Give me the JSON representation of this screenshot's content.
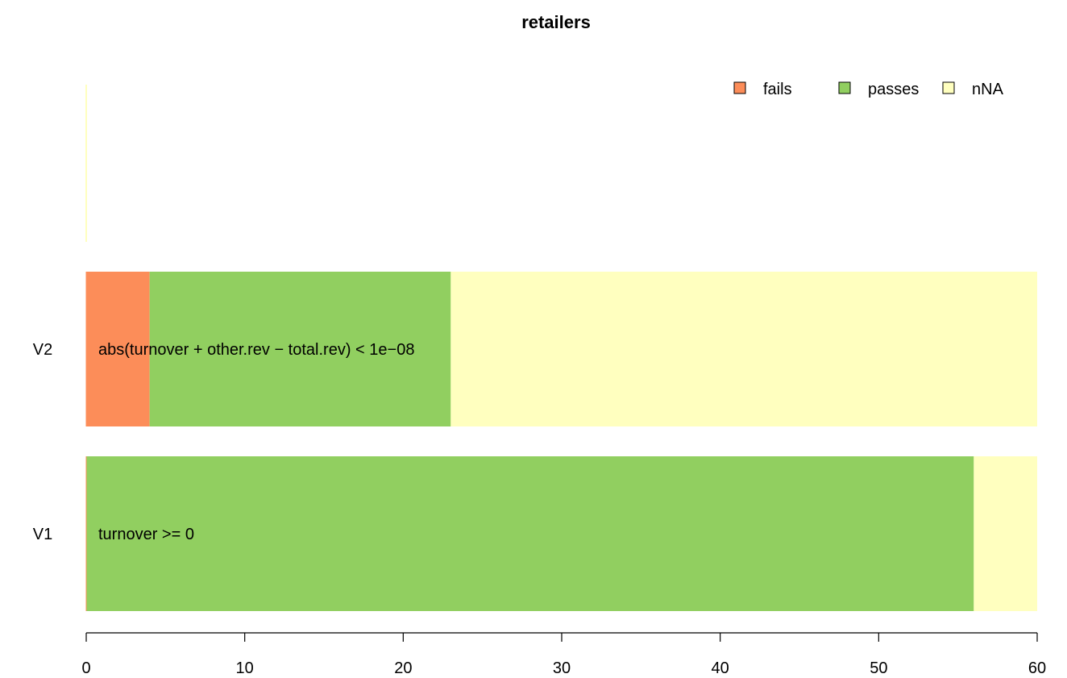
{
  "chart_data": {
    "type": "bar",
    "orientation": "horizontal",
    "stacked": true,
    "title": "retailers",
    "xlim": [
      0,
      60
    ],
    "x_ticks": [
      0,
      10,
      20,
      30,
      40,
      50,
      60
    ],
    "categories": [
      "V1",
      "V2"
    ],
    "rule_labels": [
      "turnover >= 0",
      "abs(turnover + other.rev − total.rev) < 1e−08"
    ],
    "series": [
      {
        "name": "fails",
        "color": "#fc8d59",
        "values": [
          0,
          4
        ]
      },
      {
        "name": "passes",
        "color": "#91cf60",
        "values": [
          56,
          19
        ]
      },
      {
        "name": "nNA",
        "color": "#ffffbf",
        "values": [
          4,
          37
        ]
      }
    ],
    "legend_position": "top-right",
    "grid": false
  }
}
